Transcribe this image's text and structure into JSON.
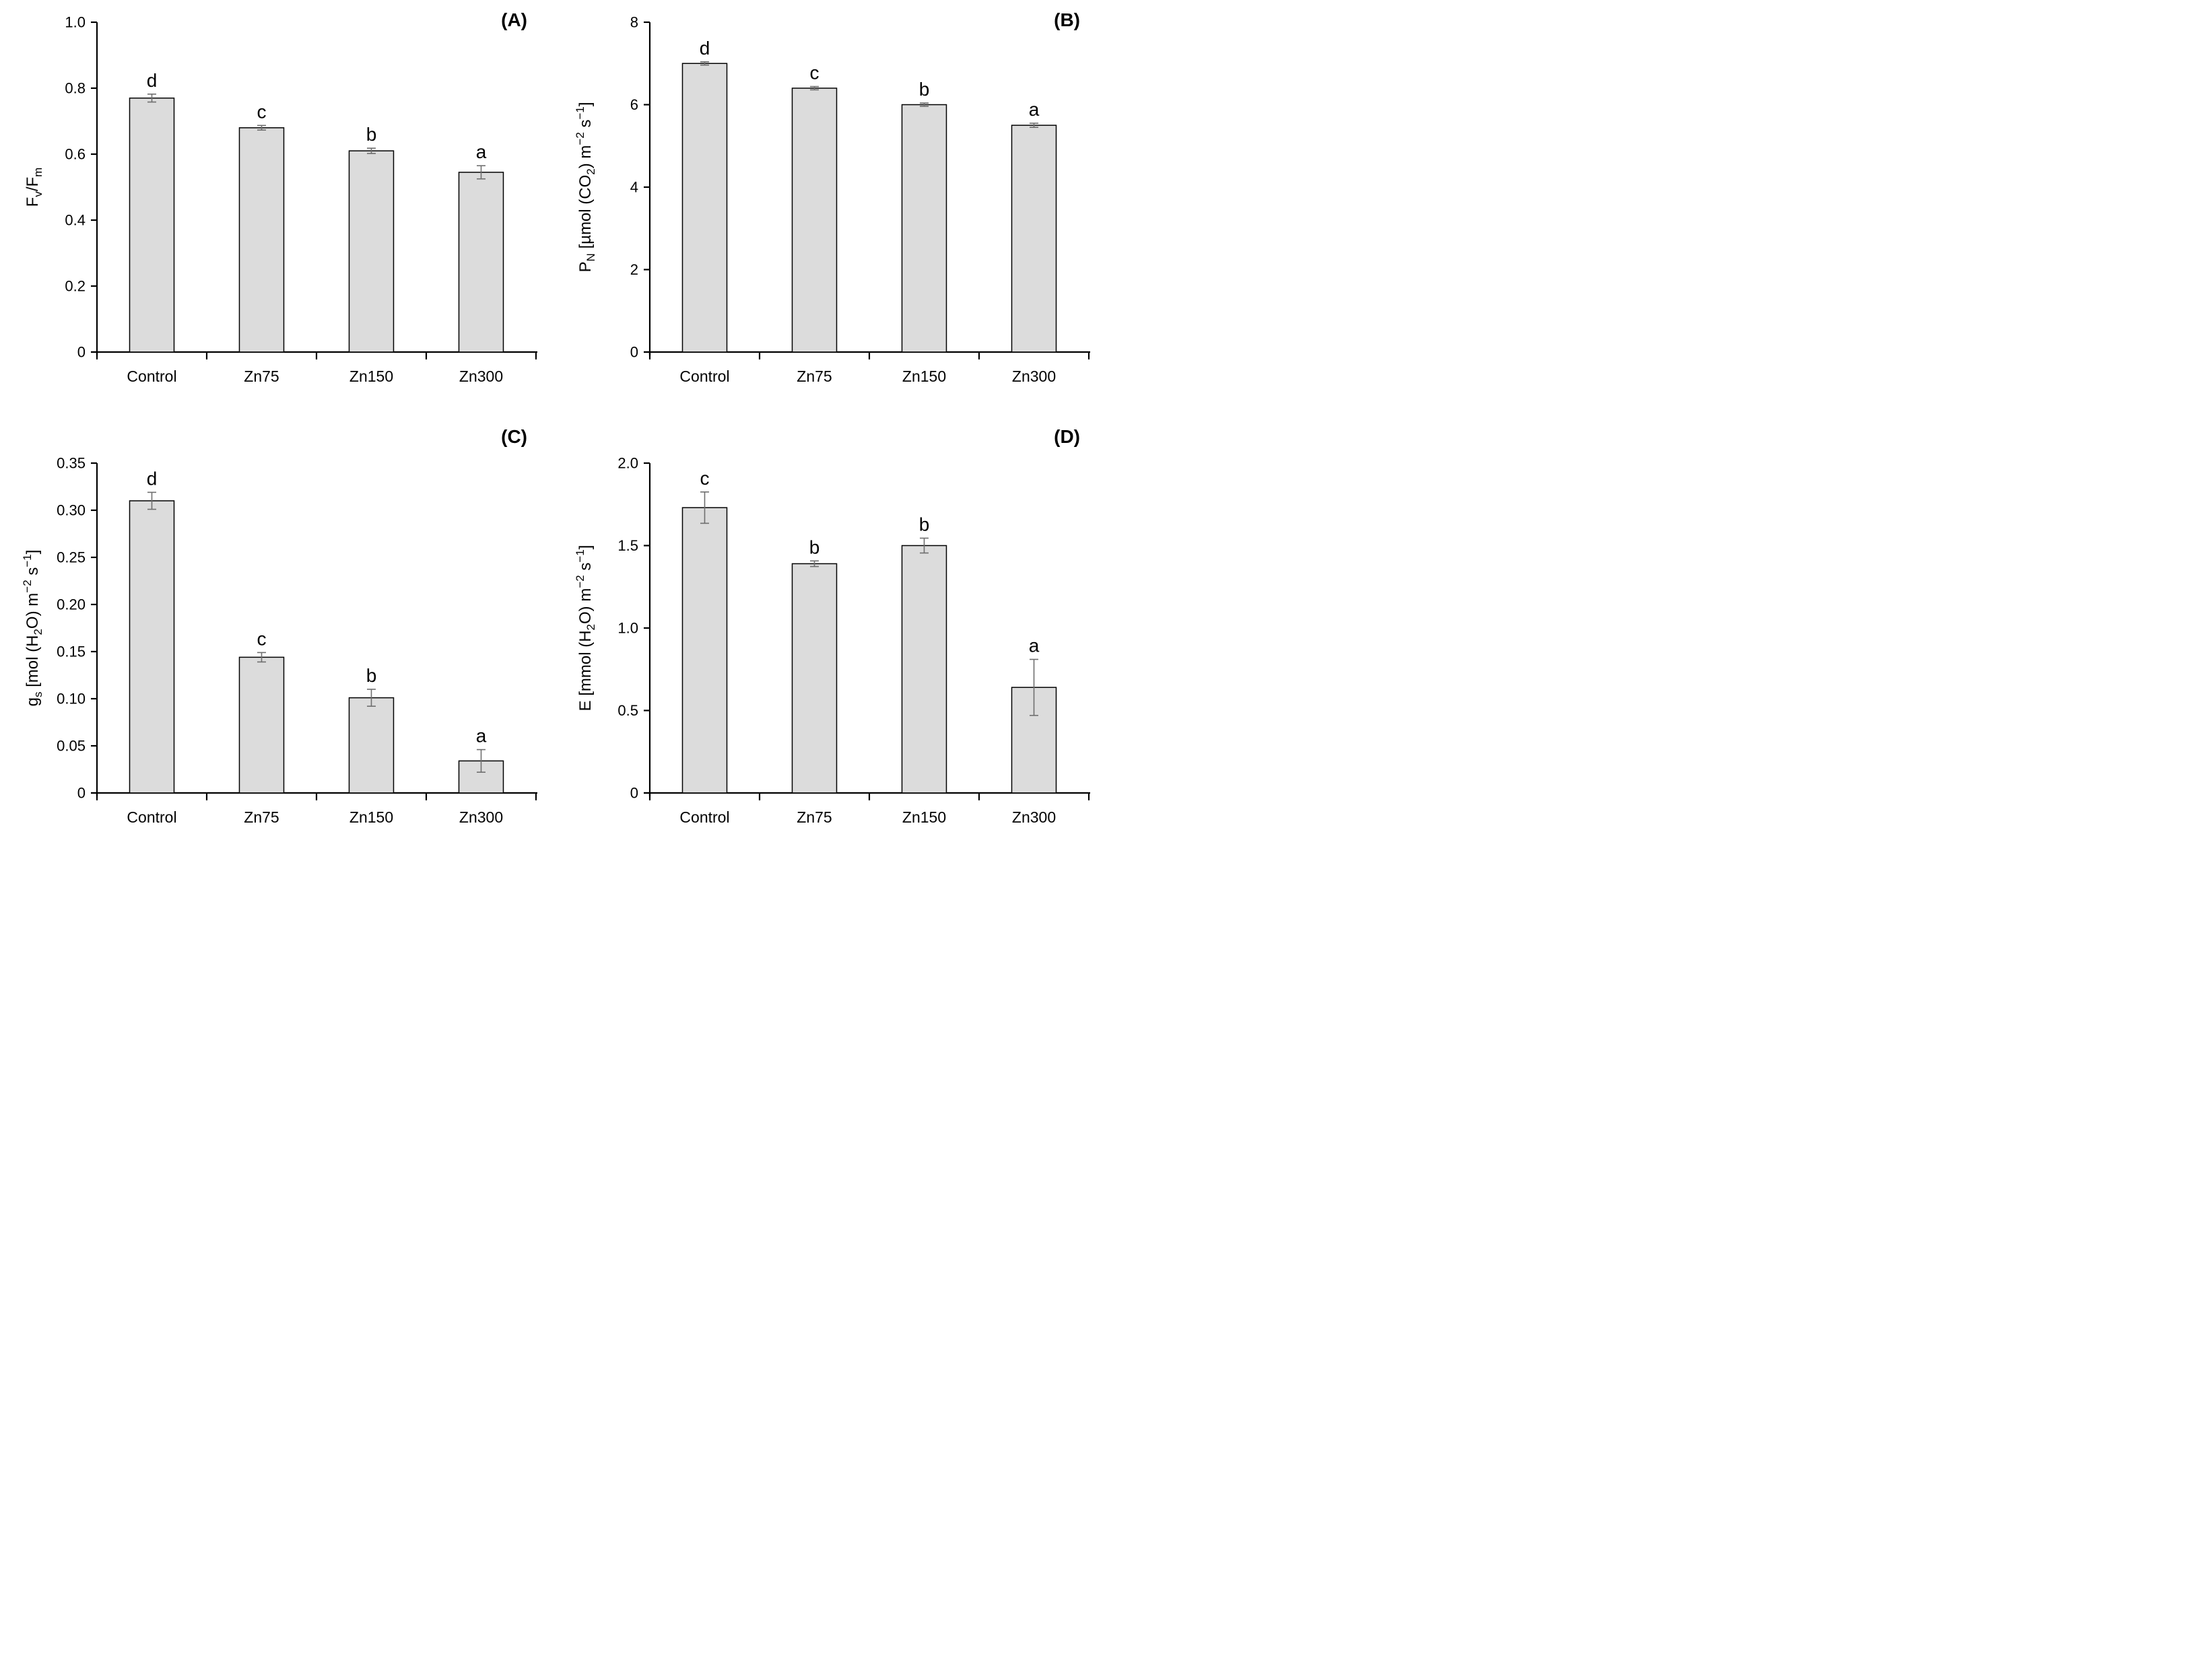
{
  "figure": {
    "background_color": "#ffffff",
    "bar_fill_color": "#dcdcdc",
    "bar_stroke_color": "#000000",
    "error_bar_color": "#6e6e6e",
    "axis_color": "#000000",
    "text_color": "#000000",
    "categories": [
      "Control",
      "Zn75",
      "Zn150",
      "Zn300"
    ]
  },
  "chart_data": [
    {
      "type": "bar",
      "panel_label": "(A)",
      "ylabel": "Fv/Fm",
      "ylabel_parts": [
        {
          "t": "F"
        },
        {
          "t": "v",
          "style": "sub"
        },
        {
          "t": "/F"
        },
        {
          "t": "m",
          "style": "sub"
        }
      ],
      "xlabel": "",
      "categories": [
        "Control",
        "Zn75",
        "Zn150",
        "Zn300"
      ],
      "values": [
        0.77,
        0.68,
        0.61,
        0.545
      ],
      "errors": [
        0.012,
        0.007,
        0.008,
        0.02
      ],
      "sig_letters": [
        "d",
        "c",
        "b",
        "a"
      ],
      "ylim": [
        0,
        1.0
      ],
      "ytick_step": 0.2,
      "ytick_labels": [
        "0",
        "0.2",
        "0.4",
        "0.6",
        "0.8",
        "1.0"
      ],
      "grid": "off",
      "legend": "none"
    },
    {
      "type": "bar",
      "panel_label": "(B)",
      "ylabel": "PN [µmol (CO2) m−2 s−1]",
      "ylabel_parts": [
        {
          "t": "P"
        },
        {
          "t": "N",
          "style": "sub"
        },
        {
          "t": " [µmol (CO"
        },
        {
          "t": "2",
          "style": "sub"
        },
        {
          "t": ") m"
        },
        {
          "t": "−2",
          "style": "sup"
        },
        {
          "t": " s"
        },
        {
          "t": "−1",
          "style": "sup"
        },
        {
          "t": "]"
        }
      ],
      "xlabel": "",
      "categories": [
        "Control",
        "Zn75",
        "Zn150",
        "Zn300"
      ],
      "values": [
        7.0,
        6.4,
        6.0,
        5.5
      ],
      "errors": [
        0.04,
        0.04,
        0.04,
        0.05
      ],
      "sig_letters": [
        "d",
        "c",
        "b",
        "a"
      ],
      "ylim": [
        0,
        8
      ],
      "ytick_step": 2,
      "ytick_labels": [
        "0",
        "2",
        "4",
        "6",
        "8"
      ],
      "grid": "off",
      "legend": "none"
    },
    {
      "type": "bar",
      "panel_label": "(C)",
      "ylabel": "gs [mol (H2O) m−2 s−1]",
      "ylabel_parts": [
        {
          "t": "g"
        },
        {
          "t": "s",
          "style": "sub"
        },
        {
          "t": " [mol (H"
        },
        {
          "t": "2",
          "style": "sub"
        },
        {
          "t": "O) m"
        },
        {
          "t": "−2",
          "style": "sup"
        },
        {
          "t": " s"
        },
        {
          "t": "−1",
          "style": "sup"
        },
        {
          "t": "]"
        }
      ],
      "xlabel": "",
      "categories": [
        "Control",
        "Zn75",
        "Zn150",
        "Zn300"
      ],
      "values": [
        0.31,
        0.144,
        0.101,
        0.034
      ],
      "errors": [
        0.009,
        0.005,
        0.009,
        0.012
      ],
      "sig_letters": [
        "d",
        "c",
        "b",
        "a"
      ],
      "ylim": [
        0,
        0.35
      ],
      "ytick_step": 0.05,
      "ytick_labels": [
        "0",
        "0.05",
        "0.10",
        "0.15",
        "0.20",
        "0.25",
        "0.30",
        "0.35"
      ],
      "grid": "off",
      "legend": "none"
    },
    {
      "type": "bar",
      "panel_label": "(D)",
      "ylabel": "E [mmol (H2O) m−2 s−1]",
      "ylabel_parts": [
        {
          "t": "E [mmol (H"
        },
        {
          "t": "2",
          "style": "sub"
        },
        {
          "t": "O) m"
        },
        {
          "t": "−2",
          "style": "sup"
        },
        {
          "t": " s"
        },
        {
          "t": "−1",
          "style": "sup"
        },
        {
          "t": "]"
        }
      ],
      "xlabel": "",
      "categories": [
        "Control",
        "Zn75",
        "Zn150",
        "Zn300"
      ],
      "values": [
        1.73,
        1.39,
        1.5,
        0.64
      ],
      "errors": [
        0.095,
        0.017,
        0.045,
        0.17
      ],
      "sig_letters": [
        "c",
        "b",
        "b",
        "a"
      ],
      "ylim": [
        0,
        2.0
      ],
      "ytick_step": 0.5,
      "ytick_labels": [
        "0",
        "0.5",
        "1.0",
        "1.5",
        "2.0"
      ],
      "grid": "off",
      "legend": "none"
    }
  ]
}
